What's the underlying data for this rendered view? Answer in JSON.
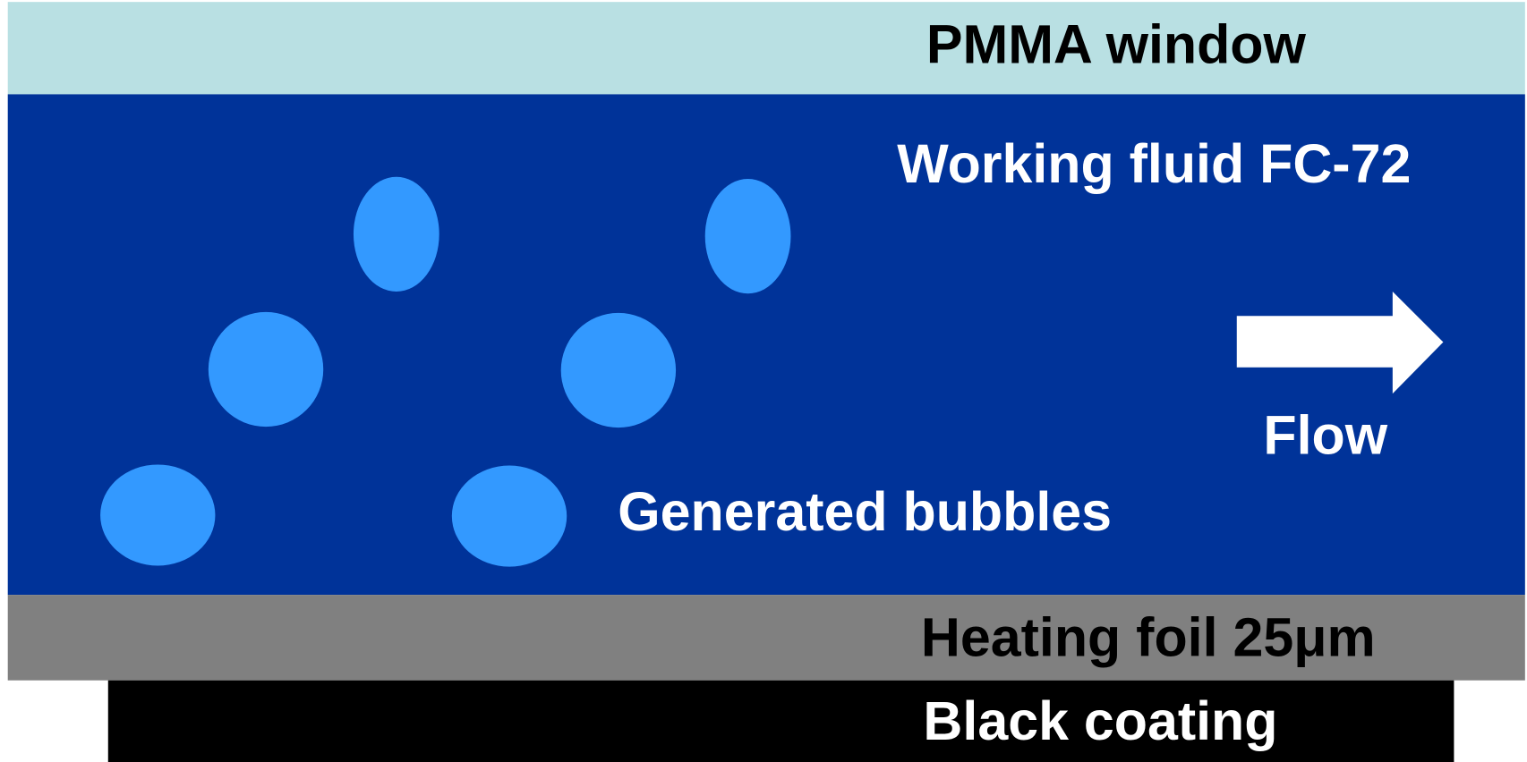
{
  "layers": {
    "window": {
      "label": "PMMA window"
    },
    "fluid": {
      "label": "Working fluid FC-72"
    },
    "foil": {
      "label": "Heating foil 25μm"
    },
    "coating": {
      "label": "Black coating"
    }
  },
  "bubbles": {
    "label": "Generated bubbles"
  },
  "flow": {
    "label": "Flow"
  }
}
